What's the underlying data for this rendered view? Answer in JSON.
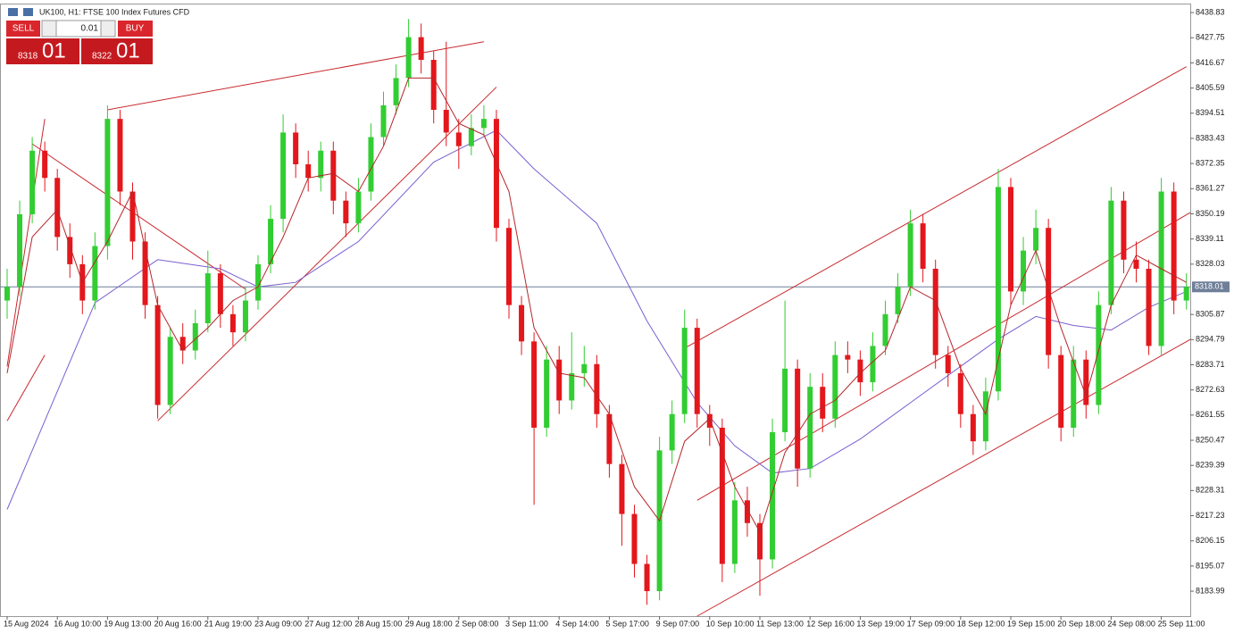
{
  "header": {
    "symbol": "UK100, H1:  FTSE 100 Index Futures CFD"
  },
  "trade_panel": {
    "sell": "SELL",
    "buy": "BUY",
    "lot": "0.01",
    "bid_big": "8318",
    "bid_small": "01",
    "ask_big": "8322",
    "ask_small": "01"
  },
  "chart_data": {
    "type": "candlestick",
    "categories": [
      "15 Aug 2024",
      null,
      null,
      null,
      "16 Aug 10:00",
      null,
      null,
      null,
      "19 Aug 13:00",
      null,
      null,
      null,
      "20 Aug 16:00",
      null,
      null,
      null,
      "21 Aug 19:00",
      null,
      null,
      null,
      "23 Aug 09:00",
      null,
      null,
      null,
      "27 Aug 12:00",
      null,
      null,
      null,
      "28 Aug 15:00",
      null,
      null,
      null,
      "29 Aug 18:00",
      null,
      null,
      null,
      "2 Sep 08:00",
      null,
      null,
      null,
      "3 Sep 11:00",
      null,
      null,
      null,
      "4 Sep 14:00",
      null,
      null,
      null,
      "5 Sep 17:00",
      null,
      null,
      null,
      "9 Sep 07:00",
      null,
      null,
      null,
      "10 Sep 10:00",
      null,
      null,
      null,
      "11 Sep 13:00",
      null,
      null,
      null,
      "12 Sep 16:00",
      null,
      null,
      null,
      "13 Sep 19:00",
      null,
      null,
      null,
      "17 Sep 09:00",
      null,
      null,
      null,
      "18 Sep 12:00",
      null,
      null,
      null,
      "19 Sep 15:00",
      null,
      null,
      null,
      "20 Sep 18:00",
      null,
      null,
      null,
      "24 Sep 08:00",
      null,
      null,
      null,
      "25 Sep 11:00",
      null,
      null
    ],
    "open": [
      8312,
      8318,
      8350,
      8378,
      8366,
      8340,
      8328,
      8312,
      8336,
      8392,
      8360,
      8338,
      8310,
      8266,
      8296,
      8290,
      8302,
      8324,
      8306,
      8298,
      8312,
      8328,
      8348,
      8386,
      8372,
      8366,
      8378,
      8356,
      8346,
      8360,
      8384,
      8398,
      8410,
      8428,
      8418,
      8396,
      8386,
      8380,
      8388,
      8392,
      8344,
      8310,
      8294,
      8256,
      8286,
      8268,
      8280,
      8284,
      8262,
      8240,
      8218,
      8196,
      8184,
      8246,
      8262,
      8300,
      8262,
      8256,
      8196,
      8224,
      8214,
      8198,
      8254,
      8282,
      8238,
      8274,
      8260,
      8288,
      8286,
      8276,
      8292,
      8306,
      8318,
      8346,
      8326,
      8288,
      8280,
      8262,
      8250,
      8272,
      8362,
      8316,
      8334,
      8344,
      8288,
      8256,
      8286,
      8266,
      8310,
      8356,
      8330,
      8326,
      8292,
      8360,
      8312
    ],
    "high": [
      8326,
      8356,
      8384,
      8382,
      8370,
      8346,
      8332,
      8342,
      8398,
      8396,
      8364,
      8342,
      8314,
      8300,
      8302,
      8308,
      8334,
      8328,
      8310,
      8318,
      8332,
      8354,
      8394,
      8390,
      8378,
      8382,
      8382,
      8360,
      8366,
      8390,
      8404,
      8416,
      8436,
      8434,
      8422,
      8426,
      8392,
      8394,
      8398,
      8396,
      8348,
      8314,
      8298,
      8292,
      8292,
      8298,
      8292,
      8288,
      8266,
      8244,
      8222,
      8200,
      8252,
      8268,
      8308,
      8304,
      8266,
      8260,
      8232,
      8230,
      8218,
      8260,
      8312,
      8286,
      8280,
      8280,
      8294,
      8294,
      8290,
      8298,
      8312,
      8324,
      8352,
      8350,
      8330,
      8292,
      8284,
      8266,
      8278,
      8370,
      8366,
      8340,
      8352,
      8348,
      8292,
      8292,
      8290,
      8316,
      8362,
      8360,
      8338,
      8330,
      8366,
      8364,
      8324
    ],
    "low": [
      8304,
      8314,
      8346,
      8360,
      8334,
      8322,
      8306,
      8308,
      8330,
      8354,
      8330,
      8304,
      8260,
      8262,
      8284,
      8286,
      8298,
      8300,
      8292,
      8294,
      8308,
      8324,
      8342,
      8366,
      8360,
      8360,
      8350,
      8340,
      8342,
      8356,
      8380,
      8394,
      8406,
      8412,
      8390,
      8380,
      8370,
      8376,
      8384,
      8338,
      8304,
      8288,
      8222,
      8252,
      8262,
      8264,
      8274,
      8256,
      8234,
      8204,
      8190,
      8178,
      8180,
      8240,
      8258,
      8256,
      8248,
      8188,
      8192,
      8208,
      8182,
      8194,
      8250,
      8230,
      8234,
      8254,
      8256,
      8280,
      8270,
      8272,
      8288,
      8302,
      8314,
      8320,
      8282,
      8274,
      8256,
      8244,
      8246,
      8268,
      8310,
      8310,
      8328,
      8282,
      8250,
      8252,
      8260,
      8262,
      8306,
      8324,
      8320,
      8288,
      8288,
      8306,
      8308
    ],
    "close": [
      8318,
      8350,
      8378,
      8366,
      8340,
      8328,
      8312,
      8336,
      8392,
      8360,
      8338,
      8310,
      8266,
      8296,
      8290,
      8302,
      8324,
      8306,
      8298,
      8312,
      8328,
      8348,
      8386,
      8372,
      8366,
      8378,
      8356,
      8346,
      8360,
      8384,
      8398,
      8410,
      8428,
      8418,
      8396,
      8386,
      8380,
      8388,
      8392,
      8344,
      8310,
      8294,
      8256,
      8286,
      8268,
      8280,
      8284,
      8262,
      8240,
      8218,
      8196,
      8184,
      8246,
      8262,
      8300,
      8262,
      8256,
      8196,
      8224,
      8214,
      8198,
      8254,
      8282,
      8238,
      8274,
      8260,
      8288,
      8286,
      8276,
      8292,
      8306,
      8318,
      8346,
      8326,
      8288,
      8280,
      8262,
      8250,
      8272,
      8362,
      8316,
      8334,
      8344,
      8288,
      8256,
      8286,
      8266,
      8310,
      8356,
      8330,
      8326,
      8292,
      8360,
      8312,
      8318
    ],
    "up_color": "#32cd32",
    "down_color": "#e3171c",
    "ma_fast": {
      "color": "#b5262a",
      "x": [
        0,
        2,
        4,
        6,
        8,
        10,
        12,
        14,
        16,
        18,
        20,
        22,
        24,
        26,
        28,
        30,
        32,
        34,
        36,
        38,
        40,
        42,
        44,
        46,
        48,
        50,
        52,
        54,
        56,
        58,
        60,
        62,
        64,
        66,
        68,
        70,
        72,
        74,
        76,
        78,
        80,
        82,
        84,
        86,
        88,
        90,
        92,
        94
      ],
      "values": [
        8280,
        8340,
        8352,
        8320,
        8338,
        8360,
        8310,
        8290,
        8300,
        8312,
        8318,
        8340,
        8366,
        8368,
        8360,
        8380,
        8410,
        8410,
        8390,
        8385,
        8360,
        8300,
        8280,
        8278,
        8262,
        8230,
        8215,
        8250,
        8260,
        8230,
        8210,
        8245,
        8262,
        8268,
        8280,
        8290,
        8318,
        8312,
        8282,
        8262,
        8310,
        8334,
        8300,
        8270,
        8310,
        8332,
        8326,
        8320
      ]
    },
    "ma_slow": {
      "color": "#7b5fd0",
      "x": [
        0,
        7,
        12,
        17,
        20,
        23,
        28,
        34,
        39,
        42,
        47,
        51,
        55,
        58,
        61,
        64,
        68,
        72,
        76,
        79,
        82,
        85,
        88,
        91,
        94
      ],
      "values": [
        8220,
        8311,
        8330,
        8326,
        8318,
        8320,
        8338,
        8373,
        8387,
        8370,
        8346,
        8303,
        8267,
        8248,
        8236,
        8238,
        8251,
        8267,
        8283,
        8295,
        8305,
        8301,
        8299,
        8309,
        8316
      ]
    },
    "trend_color": "#c8282d",
    "trendlines": [
      [
        8,
        8396,
        38,
        8426
      ],
      [
        2,
        8381,
        19,
        8317
      ],
      [
        12,
        8259,
        39,
        8406
      ],
      [
        0,
        8283,
        3,
        8392
      ],
      [
        0,
        8259,
        3,
        8288
      ],
      [
        54,
        8291,
        94,
        8415
      ],
      [
        55,
        8224,
        95,
        8353
      ],
      [
        55,
        8173,
        95,
        8297
      ]
    ],
    "current_price": 8318.01,
    "ylim": [
      8173,
      8442.4
    ],
    "yticks": [
      8438.83,
      8427.75,
      8416.67,
      8405.59,
      8394.51,
      8383.43,
      8372.35,
      8361.27,
      8350.19,
      8339.11,
      8328.03,
      8305.87,
      8294.79,
      8283.71,
      8272.63,
      8261.55,
      8250.47,
      8239.39,
      8228.31,
      8217.23,
      8206.15,
      8195.07,
      8183.99
    ]
  }
}
